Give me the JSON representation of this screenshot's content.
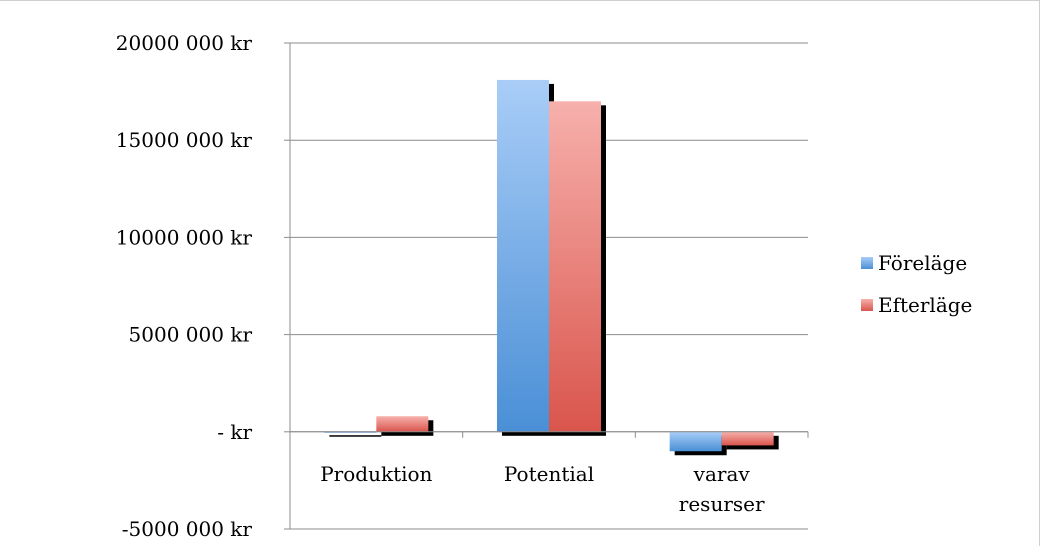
{
  "chart_data": {
    "type": "bar",
    "categories": [
      [
        "Produktion"
      ],
      [
        "Potential"
      ],
      [
        "varav",
        "resurser"
      ]
    ],
    "series": [
      {
        "name": "Föreläge",
        "values": [
          30000,
          18100000,
          -1000000
        ],
        "color_top": "#a9cdf7",
        "color_bottom": "#4a8fd6"
      },
      {
        "name": "Efterläge",
        "values": [
          800000,
          17000000,
          -700000
        ],
        "color_top": "#f7b0ac",
        "color_bottom": "#d9554c"
      }
    ],
    "yticks": [
      {
        "value": 20000000,
        "label": "20000 000 kr"
      },
      {
        "value": 15000000,
        "label": "15000 000 kr"
      },
      {
        "value": 10000000,
        "label": "10000 000 kr"
      },
      {
        "value": 5000000,
        "label": "5000 000 kr"
      },
      {
        "value": 0,
        "label": "-   kr"
      },
      {
        "value": -5000000,
        "label": "-5000 000 kr"
      }
    ],
    "ylim": [
      -5000000,
      20000000
    ],
    "grid": true,
    "legend_position": "right",
    "title": "",
    "xlabel": "",
    "ylabel": ""
  }
}
